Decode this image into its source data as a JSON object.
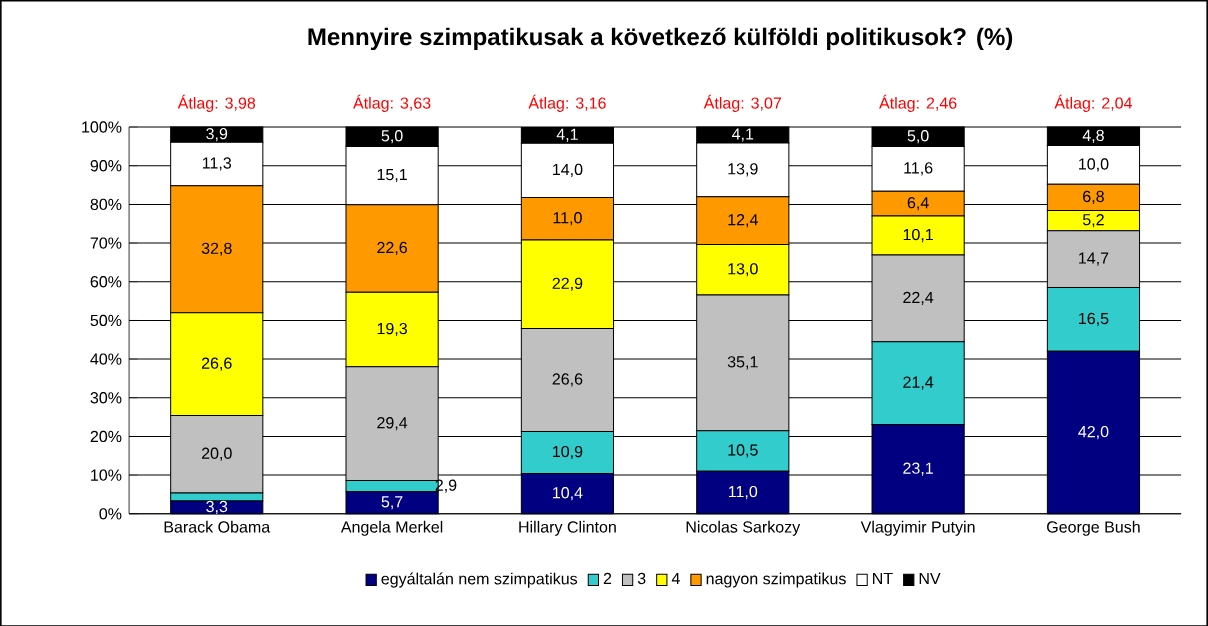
{
  "chart_data": {
    "type": "bar",
    "stacked": true,
    "title": "Mennyire szimpatikusak  a következő külföldi politikusok? (%)",
    "categories": [
      "Barack Obama",
      "Angela Merkel",
      "Hillary Clinton",
      "Nicolas Sarkozy",
      "Vlagyimir Putyin",
      "George Bush"
    ],
    "series": [
      {
        "name": "egyáltalán nem szimpatikus",
        "color": "#000080",
        "values": [
          3.3,
          5.7,
          10.4,
          11.0,
          23.1,
          42.0
        ],
        "value_labels": [
          "3,3",
          "5,7",
          "10,4",
          "11,0",
          "23,1",
          "42,0"
        ]
      },
      {
        "name": "2",
        "color": "#33cccc",
        "values": [
          2.1,
          2.9,
          10.9,
          10.5,
          21.4,
          16.5
        ],
        "value_labels": [
          null,
          "2,9",
          "10,9",
          "10,5",
          "21,4",
          "16,5"
        ]
      },
      {
        "name": "3",
        "color": "#c0c0c0",
        "values": [
          20.0,
          29.4,
          26.6,
          35.1,
          22.4,
          14.7
        ],
        "value_labels": [
          "20,0",
          "29,4",
          "26,6",
          "35,1",
          "22,4",
          "14,7"
        ]
      },
      {
        "name": "4",
        "color": "#ffff00",
        "values": [
          26.6,
          19.3,
          22.9,
          13.0,
          10.1,
          5.2
        ],
        "value_labels": [
          "26,6",
          "19,3",
          "22,9",
          "13,0",
          "10,1",
          "5,2"
        ]
      },
      {
        "name": "nagyon szimpatikus",
        "color": "#ff9900",
        "values": [
          32.8,
          22.6,
          11.0,
          12.4,
          6.4,
          6.8
        ],
        "value_labels": [
          "32,8",
          "22,6",
          "11,0",
          "12,4",
          "6,4",
          "6,8"
        ]
      },
      {
        "name": "NT",
        "color": "#ffffff",
        "values": [
          11.3,
          15.1,
          14.0,
          13.9,
          11.6,
          10.0
        ],
        "value_labels": [
          "11,3",
          "15,1",
          "14,0",
          "13,9",
          "11,6",
          "10,0"
        ]
      },
      {
        "name": "NV",
        "color": "#000000",
        "values": [
          3.9,
          5.0,
          4.1,
          4.1,
          5.0,
          4.8
        ],
        "value_labels": [
          "3,9",
          "5,0",
          "4,1",
          "4,1",
          "5,0",
          "4,8"
        ]
      }
    ],
    "ylim": [
      0,
      100
    ],
    "yticks": [
      {
        "value": 0,
        "label": "0%"
      },
      {
        "value": 10,
        "label": "10%"
      },
      {
        "value": 20,
        "label": "20%"
      },
      {
        "value": 30,
        "label": "30%"
      },
      {
        "value": 40,
        "label": "40%"
      },
      {
        "value": 50,
        "label": "50%"
      },
      {
        "value": 60,
        "label": "60%"
      },
      {
        "value": 70,
        "label": "70%"
      },
      {
        "value": 80,
        "label": "80%"
      },
      {
        "value": 90,
        "label": "90%"
      },
      {
        "value": 100,
        "label": "100%"
      }
    ],
    "grid": "y",
    "legend": "bottom",
    "annotations": [
      "Átlag: 3,98",
      "Átlag: 3,63",
      "Átlag: 3,16",
      "Átlag: 3,07",
      "Átlag: 2,46",
      "Átlag: 2,04"
    ]
  }
}
